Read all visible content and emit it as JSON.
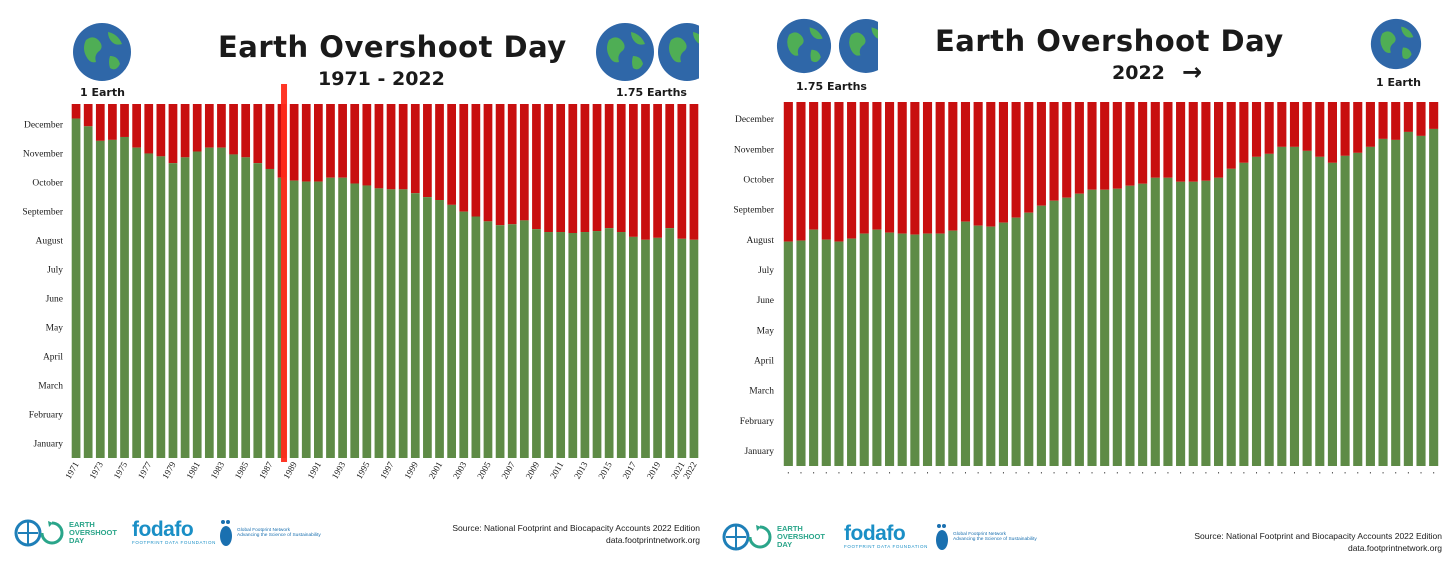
{
  "colors": {
    "green": "#5e8b46",
    "red": "#c80f0f",
    "marker": "#ff2b1a",
    "ocean": "#2f67a8",
    "land": "#4fae55"
  },
  "left_panel": {
    "title": "Earth Overshoot Day",
    "subtitle": "1971 - 2022",
    "left_earth_label": "1 Earth",
    "right_earth_label": "1.75 Earths",
    "source_line1": "Source: National Footprint and Biocapacity Accounts 2022 Edition",
    "source_line2": "data.footprintnetwork.org",
    "logos": {
      "eod": [
        "EARTH",
        "OVERSHOOT",
        "DAY"
      ],
      "fodafo": "fodafo",
      "fodafo_sub": "FOOTPRINT DATA FOUNDATION",
      "gfn": [
        "Global Footprint Network",
        "Advancing the Science of Sustainability"
      ]
    }
  },
  "right_panel": {
    "title": "Earth Overshoot Day",
    "subtitle": "2022",
    "arrow": "→",
    "left_earth_label": "1.75 Earths",
    "right_earth_label": "1 Earth",
    "source_line1": "Source: National Footprint and Biocapacity Accounts 2022 Edition",
    "source_line2": "data.footprintnetwork.org",
    "logos": {
      "eod": [
        "EARTH",
        "OVERSHOOT",
        "DAY"
      ],
      "fodafo": "fodafo",
      "fodafo_sub": "FOOTPRINT DATA FOUNDATION",
      "gfn": [
        "Global Footprint Network",
        "Advancing the Science of Sustainability"
      ]
    }
  },
  "chart_data": [
    {
      "type": "bar",
      "stacked": true,
      "months": [
        "January",
        "February",
        "March",
        "April",
        "May",
        "June",
        "July",
        "August",
        "September",
        "October",
        "November",
        "December"
      ],
      "year_labels": [
        "1971",
        "1973",
        "1975",
        "1977",
        "1979",
        "1981",
        "1983",
        "1985",
        "1987",
        "1989",
        "1991",
        "1993",
        "1995",
        "1997",
        "1999",
        "2001",
        "2003",
        "2005",
        "2007",
        "2009",
        "2011",
        "2013",
        "2015",
        "2017",
        "2019",
        "2021",
        "2022"
      ],
      "years": [
        1971,
        1972,
        1973,
        1974,
        1975,
        1976,
        1977,
        1978,
        1979,
        1980,
        1981,
        1982,
        1983,
        1984,
        1985,
        1986,
        1987,
        1988,
        1989,
        1990,
        1991,
        1992,
        1993,
        1994,
        1995,
        1996,
        1997,
        1998,
        1999,
        2000,
        2001,
        2002,
        2003,
        2004,
        2005,
        2006,
        2007,
        2008,
        2009,
        2010,
        2011,
        2012,
        2013,
        2014,
        2015,
        2016,
        2017,
        2018,
        2019,
        2020,
        2021,
        2022
      ],
      "overshoot_day_of_year": [
        350,
        342,
        327,
        328,
        331,
        320,
        314,
        311,
        304,
        310,
        316,
        320,
        320,
        313,
        310,
        304,
        298,
        289,
        286,
        285,
        285,
        289,
        289,
        283,
        281,
        278,
        277,
        277,
        273,
        269,
        266,
        261,
        254,
        249,
        244,
        240,
        241,
        245,
        236,
        233,
        233,
        232,
        233,
        234,
        237,
        233,
        228,
        225,
        227,
        237,
        226,
        225
      ],
      "legend": [
        {
          "name": "",
          "color": "#5e8b46"
        },
        {
          "name": "",
          "color": "#c80f0f"
        }
      ]
    },
    {
      "type": "bar",
      "stacked": true,
      "months": [
        "January",
        "February",
        "March",
        "April",
        "May",
        "June",
        "July",
        "August",
        "September",
        "October",
        "November",
        "December"
      ],
      "bar_count": 52,
      "overshoot_day_of_year": [
        225,
        226,
        237,
        227,
        225,
        228,
        233,
        237,
        234,
        233,
        232,
        233,
        233,
        236,
        245,
        241,
        240,
        244,
        249,
        254,
        261,
        266,
        269,
        273,
        277,
        277,
        278,
        281,
        283,
        289,
        289,
        285,
        285,
        286,
        289,
        298,
        304,
        310,
        313,
        320,
        320,
        316,
        310,
        304,
        311,
        314,
        320,
        328,
        327,
        335,
        331,
        338
      ]
    }
  ]
}
